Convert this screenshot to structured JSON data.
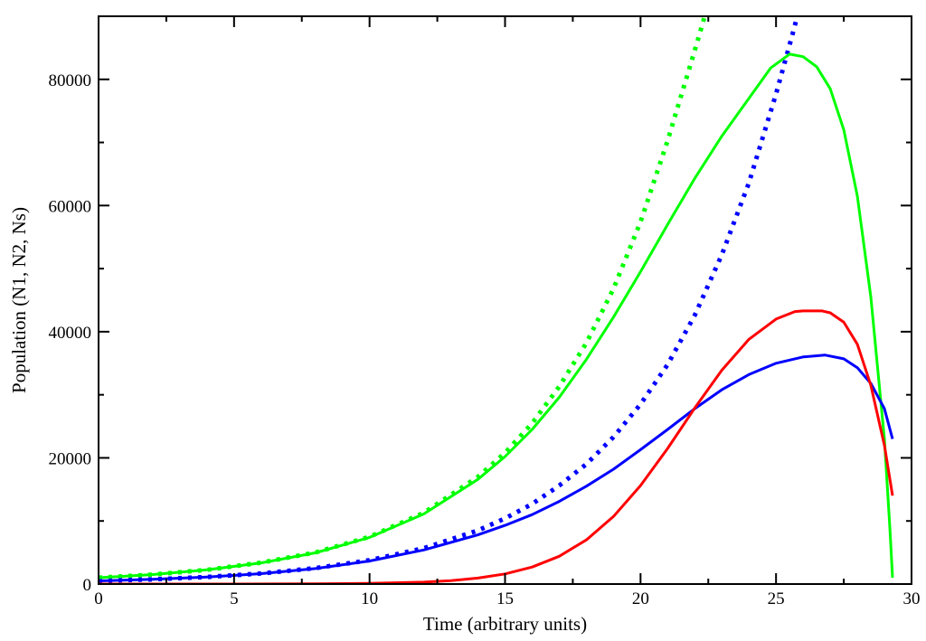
{
  "chart_data": {
    "type": "line",
    "title": "",
    "xlabel": "Time (arbitrary units)",
    "ylabel": "Population (N1, N2, Ns)",
    "xlim": [
      0,
      30
    ],
    "ylim": [
      0,
      90000
    ],
    "x_ticks": [
      0,
      5,
      10,
      15,
      20,
      25,
      30
    ],
    "x_tick_labels": [
      "0",
      "5",
      "10",
      "15",
      "20",
      "25",
      "30"
    ],
    "y_ticks": [
      0,
      20000,
      40000,
      60000,
      80000
    ],
    "y_tick_labels": [
      "0",
      "20000",
      "40000",
      "60000",
      "80000"
    ],
    "grid": false,
    "legend": "none",
    "series": [
      {
        "color": "#00ff00",
        "style": "dotted",
        "points": [
          [
            0,
            1000
          ],
          [
            2,
            1500
          ],
          [
            4,
            2250
          ],
          [
            6,
            3400
          ],
          [
            8,
            5000
          ],
          [
            10,
            7500
          ],
          [
            12,
            11300
          ],
          [
            14,
            17000
          ],
          [
            15,
            20800
          ],
          [
            16,
            25500
          ],
          [
            17,
            31300
          ],
          [
            18,
            38200
          ],
          [
            19,
            46800
          ],
          [
            20,
            57400
          ],
          [
            21,
            70300
          ],
          [
            22,
            84600
          ],
          [
            22.3,
            89000
          ],
          [
            22.5,
            92000
          ]
        ]
      },
      {
        "color": "#0000ff",
        "style": "dotted",
        "points": [
          [
            0,
            500
          ],
          [
            2,
            750
          ],
          [
            4,
            1120
          ],
          [
            6,
            1680
          ],
          [
            8,
            2520
          ],
          [
            10,
            3780
          ],
          [
            12,
            5670
          ],
          [
            14,
            8500
          ],
          [
            15,
            10400
          ],
          [
            16,
            12700
          ],
          [
            17,
            15600
          ],
          [
            18,
            19000
          ],
          [
            19,
            23300
          ],
          [
            20,
            28500
          ],
          [
            21,
            34800
          ],
          [
            22,
            42600
          ],
          [
            23,
            52200
          ],
          [
            24,
            63600
          ],
          [
            25,
            77700
          ],
          [
            25.6,
            87000
          ],
          [
            26,
            93500
          ]
        ]
      },
      {
        "color": "#00ff00",
        "style": "solid",
        "points": [
          [
            0,
            1000
          ],
          [
            2,
            1500
          ],
          [
            4,
            2250
          ],
          [
            6,
            3350
          ],
          [
            8,
            4950
          ],
          [
            10,
            7400
          ],
          [
            12,
            11100
          ],
          [
            14,
            16600
          ],
          [
            15,
            20200
          ],
          [
            16,
            24500
          ],
          [
            17,
            29600
          ],
          [
            18,
            35600
          ],
          [
            19,
            42300
          ],
          [
            20,
            49500
          ],
          [
            21,
            57000
          ],
          [
            22,
            64300
          ],
          [
            23,
            71000
          ],
          [
            24,
            77000
          ],
          [
            24.8,
            81800
          ],
          [
            25.5,
            84000
          ],
          [
            26,
            83600
          ],
          [
            26.5,
            82000
          ],
          [
            27,
            78500
          ],
          [
            27.5,
            72000
          ],
          [
            28,
            61500
          ],
          [
            28.5,
            45500
          ],
          [
            29,
            23000
          ],
          [
            29.2,
            9000
          ],
          [
            29.3,
            1000
          ]
        ]
      },
      {
        "color": "#0000ff",
        "style": "solid",
        "points": [
          [
            0,
            500
          ],
          [
            2,
            750
          ],
          [
            4,
            1100
          ],
          [
            6,
            1650
          ],
          [
            8,
            2450
          ],
          [
            10,
            3650
          ],
          [
            12,
            5400
          ],
          [
            14,
            7800
          ],
          [
            15,
            9300
          ],
          [
            16,
            11000
          ],
          [
            17,
            13100
          ],
          [
            18,
            15500
          ],
          [
            19,
            18200
          ],
          [
            20,
            21300
          ],
          [
            21,
            24500
          ],
          [
            22,
            27800
          ],
          [
            23,
            30800
          ],
          [
            24,
            33200
          ],
          [
            25,
            35000
          ],
          [
            26,
            36000
          ],
          [
            26.8,
            36300
          ],
          [
            27.5,
            35700
          ],
          [
            28,
            34300
          ],
          [
            28.5,
            31800
          ],
          [
            29,
            27800
          ],
          [
            29.3,
            23000
          ]
        ]
      },
      {
        "color": "#ff0000",
        "style": "solid",
        "points": [
          [
            0,
            0
          ],
          [
            5,
            5
          ],
          [
            8,
            30
          ],
          [
            10,
            100
          ],
          [
            12,
            300
          ],
          [
            13,
            550
          ],
          [
            14,
            950
          ],
          [
            15,
            1600
          ],
          [
            16,
            2700
          ],
          [
            17,
            4400
          ],
          [
            18,
            7000
          ],
          [
            19,
            10700
          ],
          [
            20,
            15600
          ],
          [
            21,
            21500
          ],
          [
            22,
            27900
          ],
          [
            23,
            33900
          ],
          [
            24,
            38800
          ],
          [
            25,
            42000
          ],
          [
            25.7,
            43200
          ],
          [
            26,
            43300
          ],
          [
            26.7,
            43300
          ],
          [
            27,
            43000
          ],
          [
            27.5,
            41500
          ],
          [
            28,
            38000
          ],
          [
            28.5,
            31500
          ],
          [
            29,
            22000
          ],
          [
            29.3,
            14000
          ]
        ]
      }
    ]
  }
}
